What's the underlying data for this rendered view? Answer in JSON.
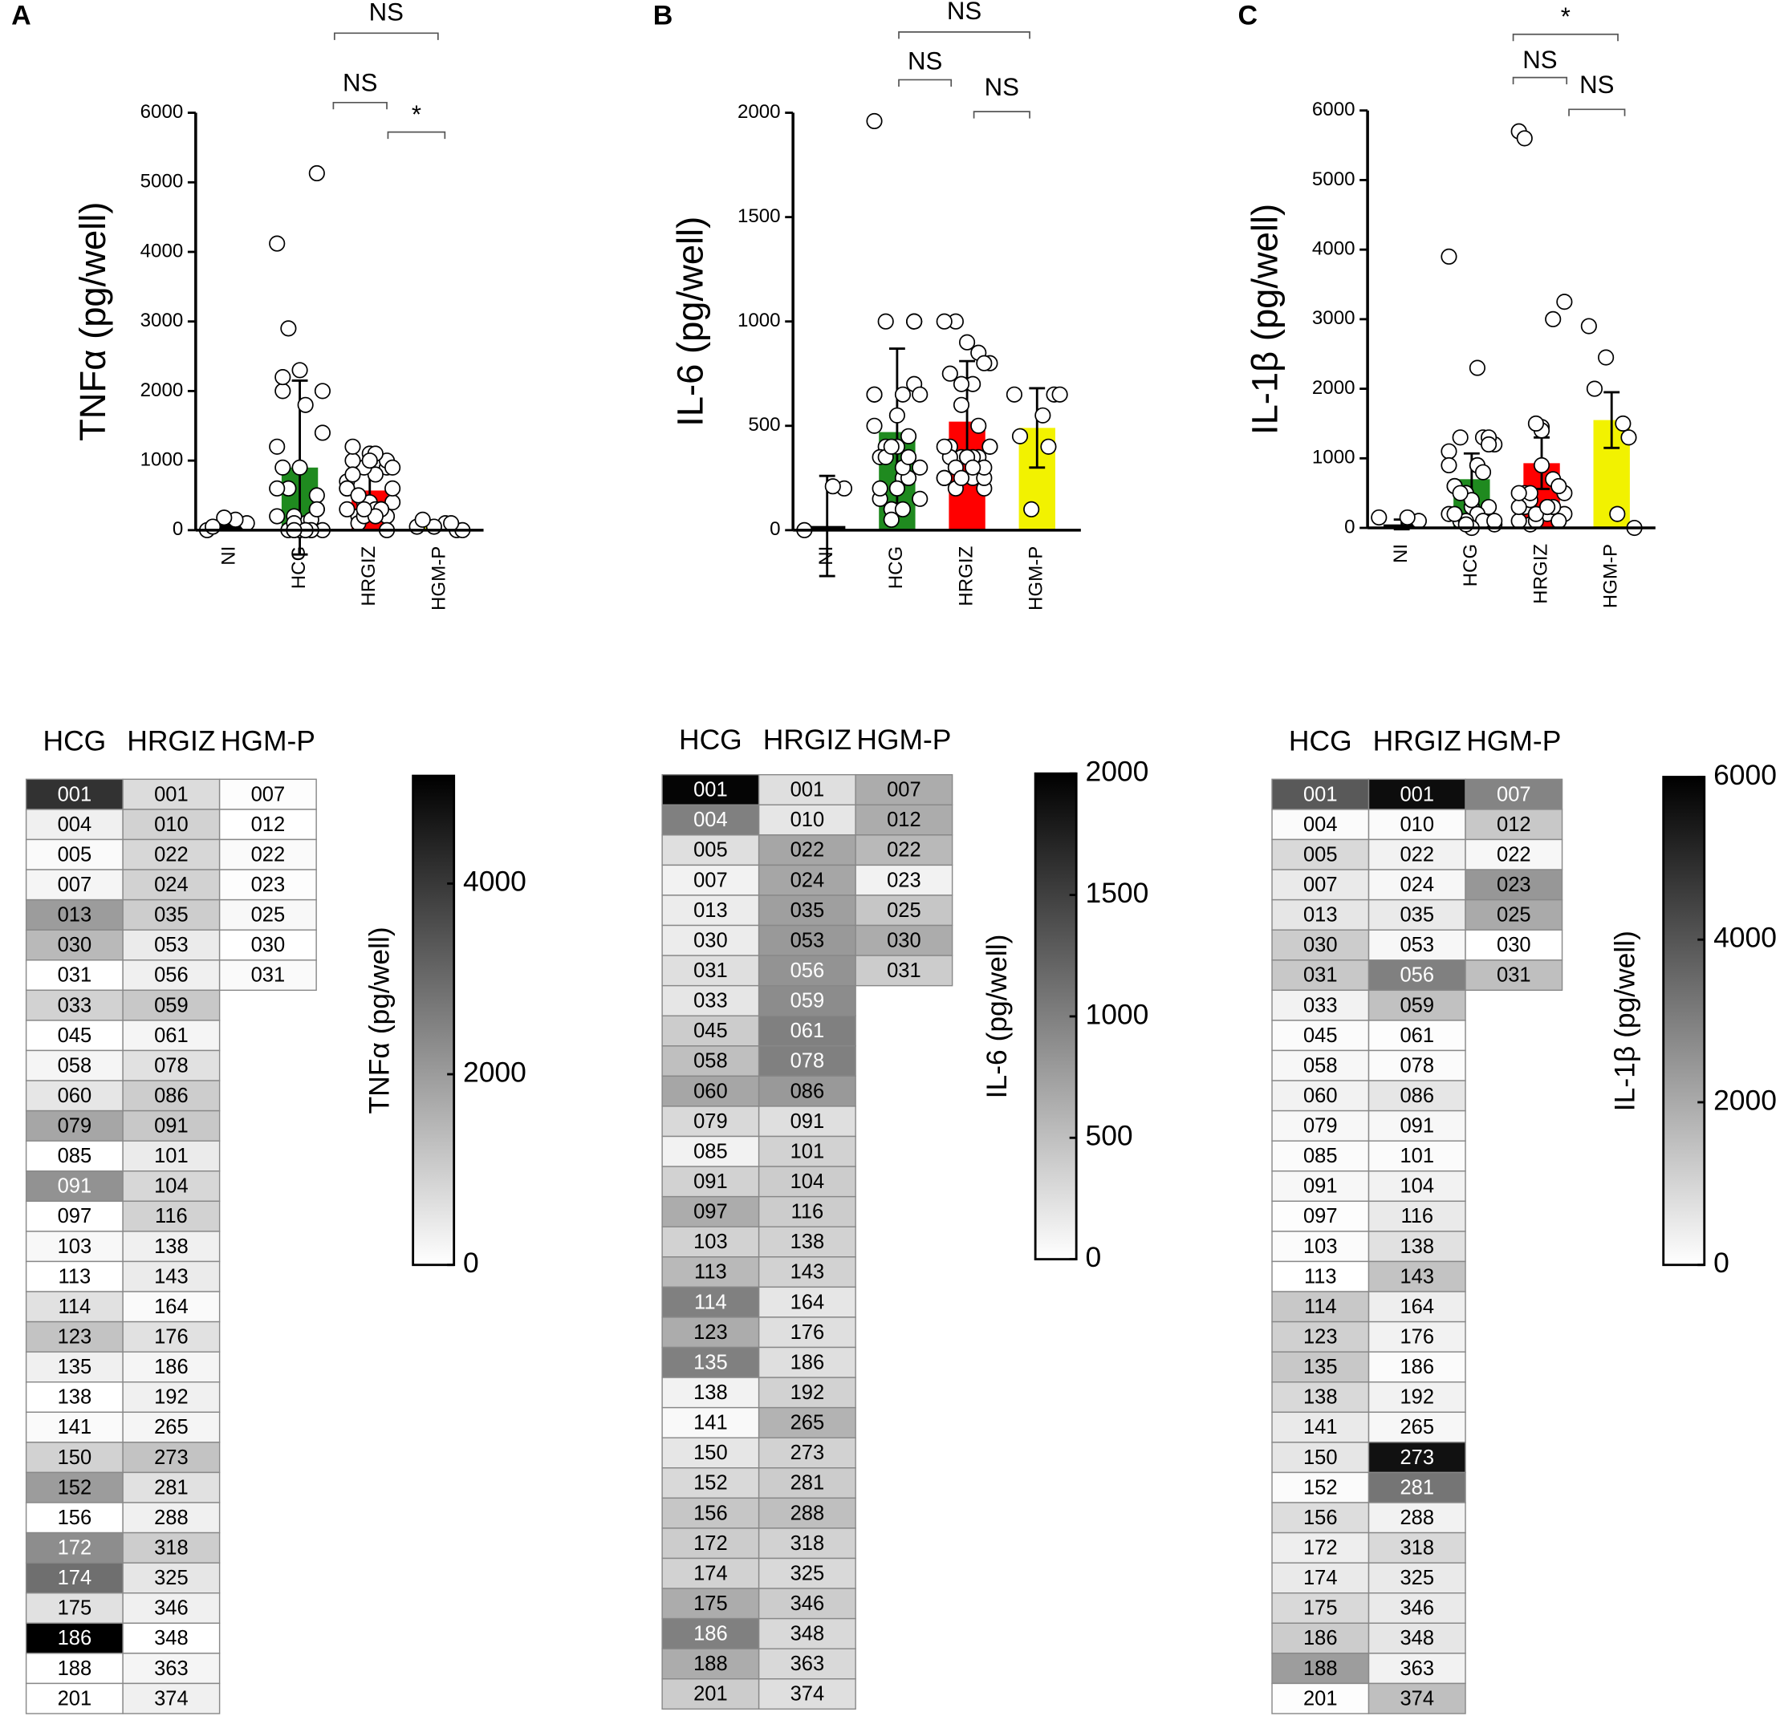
{
  "chart_data": [
    {
      "type": "bar",
      "panel": "A",
      "ylabel": "TNFα (pg/well)",
      "categories": [
        "NI",
        "HCG",
        "HRGIZ",
        "HGM-P"
      ],
      "colors": [
        "#000000",
        "#1f8a1f",
        "#ff0000",
        "#f2f200"
      ],
      "values": [
        100,
        900,
        570,
        80
      ],
      "errors": [
        100,
        1250,
        400,
        30
      ],
      "points": [
        [
          0,
          100,
          150,
          180,
          50
        ],
        [
          4120,
          300,
          100,
          200,
          2000,
          1400,
          0,
          900,
          0,
          200,
          500,
          1800,
          0,
          2200,
          0,
          150,
          0,
          600,
          1200,
          300,
          0,
          100,
          900,
          2000,
          0,
          2300,
          2900,
          600,
          5130,
          0,
          0
        ],
        [
          700,
          900,
          800,
          900,
          1000,
          400,
          300,
          1100,
          200,
          600,
          1000,
          1100,
          400,
          800,
          900,
          300,
          400,
          100,
          600,
          200,
          300,
          200,
          1200,
          600,
          300,
          1000,
          500,
          300,
          0,
          200,
          300
        ],
        [
          50,
          0,
          100,
          50,
          150,
          0,
          100
        ]
      ],
      "ylim": [
        0,
        6000
      ],
      "yticks": [
        0,
        1000,
        2000,
        3000,
        4000,
        5000,
        6000
      ],
      "annotations": [
        "NS",
        "NS",
        "*"
      ]
    },
    {
      "type": "bar",
      "panel": "B",
      "ylabel": "IL-6 (pg/well)",
      "categories": [
        "NI",
        "HCG",
        "HRGIZ",
        "HGM-P"
      ],
      "colors": [
        "#000000",
        "#1f8a1f",
        "#ff0000",
        "#f2f200"
      ],
      "values": [
        20,
        470,
        520,
        490
      ],
      "errors": [
        240,
        400,
        290,
        190
      ],
      "points": [
        [
          0,
          200,
          210
        ],
        [
          1960,
          1000,
          250,
          100,
          150,
          150,
          250,
          200,
          400,
          500,
          700,
          300,
          100,
          350,
          650,
          350,
          550,
          1000,
          650,
          1000,
          100,
          50,
          200,
          300,
          450,
          400,
          350,
          650,
          1000,
          650,
          400
        ],
        [
          250,
          200,
          700,
          700,
          750,
          800,
          850,
          900,
          1000,
          1000,
          800,
          250,
          350,
          400,
          400,
          350,
          350,
          200,
          250,
          250,
          350,
          600,
          350,
          400,
          500,
          350,
          300,
          400,
          300,
          300,
          250
        ],
        [
          650,
          650,
          550,
          100,
          450,
          650,
          400
        ]
      ],
      "ylim": [
        0,
        2000
      ],
      "yticks": [
        0,
        500,
        1000,
        1500,
        2000
      ],
      "annotations": [
        "NS",
        "NS",
        "NS"
      ]
    },
    {
      "type": "bar",
      "panel": "C",
      "ylabel": "IL-1β (pg/well)",
      "categories": [
        "NI",
        "HCG",
        "HRGIZ",
        "HGM-P"
      ],
      "colors": [
        "#000000",
        "#1f8a1f",
        "#ff0000",
        "#f2f200"
      ],
      "values": [
        50,
        700,
        930,
        1550
      ],
      "errors": [
        70,
        370,
        370,
        400
      ],
      "points": [
        [
          150,
          100,
          150
        ],
        [
          3900,
          100,
          900,
          500,
          600,
          1200,
          1300,
          300,
          100,
          200,
          300,
          200,
          100,
          200,
          50,
          100,
          0,
          1300,
          1100,
          1300,
          900,
          500,
          600,
          100,
          800,
          400,
          500,
          900,
          1200,
          2300,
          50
        ],
        [
          5700,
          100,
          300,
          200,
          500,
          200,
          3000,
          1450,
          50,
          100,
          600,
          200,
          100,
          300,
          500,
          700,
          1400,
          400,
          300,
          100,
          300,
          200,
          5600,
          3250,
          300,
          900,
          500,
          500,
          600,
          300,
          1500
        ],
        [
          2900,
          1300,
          200,
          2450,
          2000,
          0,
          1500
        ]
      ],
      "ylim": [
        0,
        6000
      ],
      "yticks": [
        0,
        1000,
        2000,
        3000,
        4000,
        5000,
        6000
      ],
      "annotations": [
        "*",
        "NS",
        "NS"
      ]
    },
    {
      "type": "heatmap",
      "colorbar_label": "TNFα (pg/well)",
      "clim": [
        0,
        5130
      ],
      "cticks": [
        0,
        2000,
        4000
      ],
      "columns": [
        {
          "name": "HCG",
          "ids": [
            "001",
            "004",
            "005",
            "007",
            "013",
            "030",
            "031",
            "033",
            "045",
            "058",
            "060",
            "079",
            "085",
            "091",
            "097",
            "103",
            "113",
            "114",
            "123",
            "135",
            "138",
            "141",
            "150",
            "152",
            "156",
            "172",
            "174",
            "175",
            "186",
            "188",
            "201"
          ],
          "values": [
            4120,
            300,
            100,
            200,
            2000,
            1400,
            0,
            900,
            0,
            200,
            500,
            1800,
            0,
            2200,
            0,
            150,
            0,
            600,
            1200,
            300,
            0,
            100,
            900,
            2000,
            0,
            2300,
            2900,
            600,
            5130,
            0,
            0
          ]
        },
        {
          "name": "HRGIZ",
          "ids": [
            "001",
            "010",
            "022",
            "024",
            "035",
            "053",
            "056",
            "059",
            "061",
            "078",
            "086",
            "091",
            "101",
            "104",
            "116",
            "138",
            "143",
            "164",
            "176",
            "186",
            "192",
            "265",
            "273",
            "281",
            "288",
            "318",
            "325",
            "346",
            "348",
            "363",
            "374"
          ],
          "values": [
            700,
            900,
            800,
            900,
            1000,
            400,
            300,
            1100,
            200,
            600,
            1000,
            1100,
            400,
            800,
            900,
            300,
            400,
            100,
            600,
            200,
            300,
            200,
            1200,
            600,
            300,
            1000,
            500,
            300,
            0,
            200,
            300
          ]
        },
        {
          "name": "HGM-P",
          "ids": [
            "007",
            "012",
            "022",
            "023",
            "025",
            "030",
            "031"
          ],
          "values": [
            50,
            0,
            100,
            50,
            150,
            0,
            100
          ]
        }
      ]
    },
    {
      "type": "heatmap",
      "colorbar_label": "IL-6 (pg/well)",
      "clim": [
        0,
        2000
      ],
      "cticks": [
        0,
        500,
        1000,
        1500,
        2000
      ],
      "columns": [
        {
          "name": "HCG",
          "ids": [
            "001",
            "004",
            "005",
            "007",
            "013",
            "030",
            "031",
            "033",
            "045",
            "058",
            "060",
            "079",
            "085",
            "091",
            "097",
            "103",
            "113",
            "114",
            "123",
            "135",
            "138",
            "141",
            "150",
            "152",
            "156",
            "172",
            "174",
            "175",
            "186",
            "188",
            "201"
          ],
          "values": [
            1960,
            1000,
            250,
            100,
            150,
            150,
            250,
            200,
            400,
            500,
            700,
            300,
            100,
            350,
            650,
            350,
            550,
            1000,
            650,
            1000,
            100,
            50,
            200,
            300,
            450,
            400,
            350,
            650,
            1000,
            650,
            400
          ]
        },
        {
          "name": "HRGIZ",
          "ids": [
            "001",
            "010",
            "022",
            "024",
            "035",
            "053",
            "056",
            "059",
            "061",
            "078",
            "086",
            "091",
            "101",
            "104",
            "116",
            "138",
            "143",
            "164",
            "176",
            "186",
            "192",
            "265",
            "273",
            "281",
            "288",
            "318",
            "325",
            "346",
            "348",
            "363",
            "374"
          ],
          "values": [
            250,
            200,
            700,
            700,
            750,
            800,
            850,
            900,
            1000,
            1000,
            800,
            250,
            350,
            400,
            400,
            350,
            350,
            200,
            250,
            250,
            350,
            600,
            350,
            400,
            500,
            350,
            300,
            400,
            300,
            300,
            250
          ]
        },
        {
          "name": "HGM-P",
          "ids": [
            "007",
            "012",
            "022",
            "023",
            "025",
            "030",
            "031"
          ],
          "values": [
            650,
            650,
            550,
            100,
            450,
            650,
            400
          ]
        }
      ]
    },
    {
      "type": "heatmap",
      "colorbar_label": "IL-1β (pg/well)",
      "clim": [
        0,
        6000
      ],
      "cticks": [
        0,
        2000,
        4000,
        6000
      ],
      "columns": [
        {
          "name": "HCG",
          "ids": [
            "001",
            "004",
            "005",
            "007",
            "013",
            "030",
            "031",
            "033",
            "045",
            "058",
            "060",
            "079",
            "085",
            "091",
            "097",
            "103",
            "113",
            "114",
            "123",
            "135",
            "138",
            "141",
            "150",
            "152",
            "156",
            "172",
            "174",
            "175",
            "186",
            "188",
            "201"
          ],
          "values": [
            3900,
            100,
            900,
            500,
            600,
            1200,
            1300,
            300,
            100,
            200,
            300,
            200,
            100,
            200,
            50,
            100,
            0,
            1300,
            1100,
            1300,
            900,
            500,
            600,
            100,
            800,
            400,
            500,
            900,
            1200,
            2300,
            50
          ]
        },
        {
          "name": "HRGIZ",
          "ids": [
            "001",
            "010",
            "022",
            "024",
            "035",
            "053",
            "056",
            "059",
            "061",
            "078",
            "086",
            "091",
            "101",
            "104",
            "116",
            "138",
            "143",
            "164",
            "176",
            "186",
            "192",
            "265",
            "273",
            "281",
            "288",
            "318",
            "325",
            "346",
            "348",
            "363",
            "374"
          ],
          "values": [
            5700,
            100,
            300,
            200,
            500,
            200,
            3000,
            1450,
            50,
            100,
            600,
            200,
            100,
            300,
            500,
            700,
            1400,
            400,
            300,
            100,
            300,
            200,
            5600,
            3250,
            300,
            900,
            500,
            500,
            600,
            300,
            1500
          ]
        },
        {
          "name": "HGM-P",
          "ids": [
            "007",
            "012",
            "022",
            "023",
            "025",
            "030",
            "031"
          ],
          "values": [
            2900,
            1300,
            200,
            2450,
            2000,
            0,
            1500
          ]
        }
      ]
    }
  ]
}
